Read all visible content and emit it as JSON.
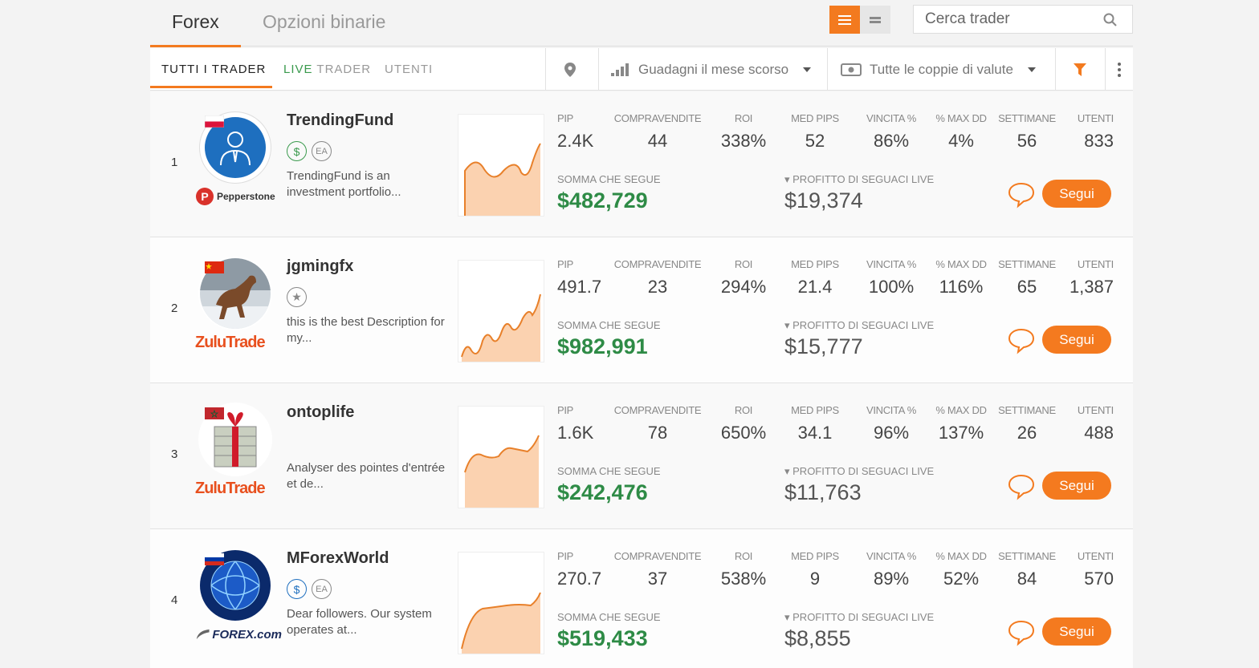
{
  "top_tabs": {
    "forex": "Forex",
    "binary": "Opzioni binarie"
  },
  "search": {
    "placeholder": "Cerca trader"
  },
  "subtabs": {
    "all": "TUTTI I TRADER",
    "live_prefix": "LIVE",
    "live_suffix": " TRADER",
    "users": "UTENTI"
  },
  "filters": {
    "earnings": "Guadagni il mese scorso",
    "pairs": "Tutte le coppie di valute"
  },
  "labels": {
    "pip": "PIP",
    "trades": "COMPRAVENDITE",
    "roi": "ROI",
    "avg_pips": "MED PIPS",
    "win": "VINCITA %",
    "max_dd": "% MAX DD",
    "weeks": "SETTIMANE",
    "users": "UTENTI",
    "somma": "SOMMA CHE SEGUE",
    "profit": "▾ PROFITTO DI SEGUACI LIVE",
    "follow": "Segui"
  },
  "colors": {
    "accent": "#f37a1f",
    "positive": "#2e8b46"
  },
  "traders": [
    {
      "rank": "1",
      "name": "TrendingFund",
      "broker": "Pepperstone",
      "broker_logo": "pepperstone-logo",
      "badges": [
        "$",
        "EA"
      ],
      "description": "TrendingFund is an investment portfolio...",
      "flag": "poland-flag",
      "avatar": "businessman-icon",
      "pip": "2.4K",
      "trades": "44",
      "roi": "338%",
      "avg_pips": "52",
      "win": "86%",
      "max_dd": "4%",
      "weeks": "56",
      "users": "833",
      "somma": "$482,729",
      "profit": "$19,374"
    },
    {
      "rank": "2",
      "name": "jgmingfx",
      "broker": "ZuluTrade",
      "broker_logo": "zulutrade-logo",
      "badges": [
        "★"
      ],
      "description": "this is the best Description for my...",
      "flag": "china-flag",
      "avatar": "horse-photo",
      "pip": "491.7",
      "trades": "23",
      "roi": "294%",
      "avg_pips": "21.4",
      "win": "100%",
      "max_dd": "116%",
      "weeks": "65",
      "users": "1,387",
      "somma": "$982,991",
      "profit": "$15,777"
    },
    {
      "rank": "3",
      "name": "ontoplife",
      "broker": "ZuluTrade",
      "broker_logo": "zulutrade-logo",
      "badges": [],
      "description": "Analyser des pointes d'entrée et de...",
      "flag": "morocco-flag",
      "avatar": "gift-money-photo",
      "pip": "1.6K",
      "trades": "78",
      "roi": "650%",
      "avg_pips": "34.1",
      "win": "96%",
      "max_dd": "137%",
      "weeks": "26",
      "users": "488",
      "somma": "$242,476",
      "profit": "$11,763"
    },
    {
      "rank": "4",
      "name": "MForexWorld",
      "broker": "FOREX.com",
      "broker_logo": "forexcom-logo",
      "badges": [
        "$",
        "EA"
      ],
      "description": "Dear followers. Our system operates at...",
      "flag": "russia-flag",
      "avatar": "globe-network-photo",
      "pip": "270.7",
      "trades": "37",
      "roi": "538%",
      "avg_pips": "9",
      "win": "89%",
      "max_dd": "52%",
      "weeks": "84",
      "users": "570",
      "somma": "$519,433",
      "profit": "$8,855"
    }
  ]
}
